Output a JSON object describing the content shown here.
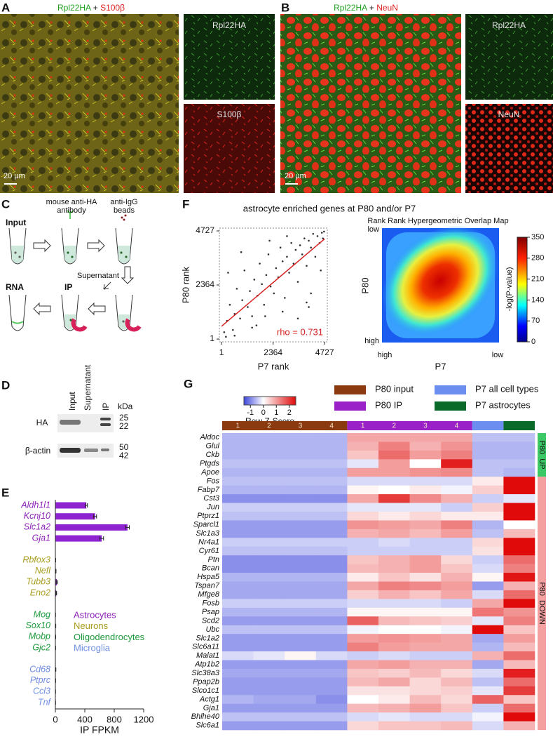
{
  "figure": {
    "A": {
      "letter": "A",
      "title": {
        "green": "Rpl22HA",
        "plus": "+",
        "red": "S100β"
      },
      "scale_bar": "20 µm",
      "insets": [
        "Rpl22HA",
        "S100β"
      ]
    },
    "B": {
      "letter": "B",
      "title": {
        "green": "Rpl22HA",
        "plus": "+",
        "red": "NeuN"
      },
      "scale_bar": "20 µm",
      "insets": [
        "Rpl22HA",
        "NeuN"
      ]
    },
    "C": {
      "letter": "C",
      "input": "Input",
      "antibody": [
        "mouse anti-HA",
        "antibody"
      ],
      "beads": [
        "anti-IgG",
        "beads"
      ],
      "supernatant": "Supernatant",
      "rna": "RNA",
      "ip": "IP"
    },
    "D": {
      "letter": "D",
      "lanes": [
        "Input",
        "Supernatant",
        "IP"
      ],
      "unit": "kDa",
      "blots": [
        {
          "name": "HA",
          "kda": [
            25,
            22
          ]
        },
        {
          "name": "β-actin",
          "kda": [
            50,
            42
          ]
        }
      ]
    }
  },
  "chart_data": [
    {
      "panel": "E",
      "type": "bar",
      "bar_color": "#8e24d0",
      "xlabel": "IP FPKM",
      "xlim": [
        0,
        1200
      ],
      "xticks": [
        0,
        400,
        800,
        1200
      ],
      "groups": [
        {
          "name": "Astrocytes",
          "color": "#8e24b8",
          "categories": [
            "Aldh1l1",
            "Kcnj10",
            "Slc1a2",
            "Gja1"
          ],
          "values": [
            420,
            540,
            980,
            630
          ],
          "errors": [
            15,
            20,
            25,
            25
          ]
        },
        {
          "name": "Neurons",
          "color": "#a89c1c",
          "categories": [
            "Rbfox3",
            "Nefl",
            "Tubb3",
            "Eno2"
          ],
          "values": [
            3,
            6,
            20,
            12
          ],
          "errors": [
            2,
            3,
            8,
            5
          ]
        },
        {
          "name": "Oligodendrocytes",
          "color": "#1e9a3c",
          "categories": [
            "Mog",
            "Sox10",
            "Mobp",
            "Gjc2"
          ],
          "values": [
            2,
            4,
            3,
            3
          ],
          "errors": [
            1,
            2,
            2,
            1
          ]
        },
        {
          "name": "Microglia",
          "color": "#6e8ee0",
          "categories": [
            "Cd68",
            "Ptprc",
            "Ccl3",
            "Tnf"
          ],
          "values": [
            5,
            3,
            2,
            2
          ],
          "errors": [
            2,
            1,
            1,
            1
          ]
        }
      ]
    },
    {
      "panel": "F",
      "type": "scatter",
      "title": "astrocyte enriched genes at P80 and/or P7",
      "xlabel": "P7 rank",
      "ylabel": "P80 rank",
      "xlim": [
        -100,
        4850
      ],
      "ylim": [
        -120,
        4850
      ],
      "xticks": [
        1,
        2364,
        4727
      ],
      "yticks": [
        1,
        2364,
        4727
      ],
      "color": "#333333",
      "x": [
        120,
        250,
        380,
        520,
        600,
        700,
        850,
        950,
        1050,
        1200,
        1300,
        1400,
        1500,
        1650,
        1750,
        1850,
        1950,
        2050,
        2150,
        2250,
        2400,
        2500,
        2600,
        2700,
        2800,
        2900,
        3000,
        3100,
        3200,
        3300,
        3400,
        3500,
        3600,
        3700,
        3800,
        3900,
        4000,
        4100,
        4200,
        4300,
        4400,
        4500,
        4600,
        4650,
        4700,
        300,
        900,
        1600,
        2200,
        2800,
        3500,
        4100,
        600,
        1400,
        2000,
        3000,
        3900,
        4550,
        200,
        4000
      ],
      "y": [
        300,
        800,
        1500,
        400,
        1100,
        2200,
        900,
        1700,
        3000,
        1400,
        2100,
        1000,
        2600,
        1900,
        3300,
        2400,
        1500,
        2800,
        3700,
        2300,
        2000,
        3100,
        2700,
        4000,
        3400,
        1800,
        3600,
        2900,
        4200,
        3300,
        3900,
        2500,
        4100,
        3700,
        4400,
        3200,
        4300,
        4000,
        4600,
        3600,
        4500,
        4200,
        4650,
        4400,
        4700,
        2900,
        3800,
        600,
        4300,
        1200,
        900,
        2000,
        150,
        500,
        1000,
        4500,
        1600,
        3000,
        100,
        1400
      ],
      "fit": {
        "x": [
          1,
          4727
        ],
        "y": [
          560,
          4380
        ],
        "color": "#d62020"
      },
      "annotation": "rho = 0.731"
    },
    {
      "type": "rrho",
      "title": "Rank Rank Hypergeometric Overlap Map",
      "xlabel": "P7",
      "ylabel": "P80",
      "x_ends": [
        "high",
        "low"
      ],
      "y_ends": [
        "low",
        "high"
      ],
      "colorbar": {
        "label": "-log(P-value)",
        "lim": [
          0,
          350
        ],
        "ticks": [
          0,
          70,
          140,
          210,
          280,
          350
        ]
      }
    },
    {
      "panel": "G",
      "type": "heatmap",
      "color_key": {
        "title": "Row Z-Score",
        "lim": [
          -1.5,
          2.5
        ],
        "ticks": [
          -1,
          0,
          1,
          2
        ],
        "low": "#3c46dc",
        "mid": "#ffffff",
        "high": "#e00a0a"
      },
      "column_groups": [
        {
          "name": "P80 input",
          "color": "#8b3a10",
          "columns": [
            "1",
            "2",
            "3",
            "4"
          ]
        },
        {
          "name": "P80 IP",
          "color": "#9a20c8",
          "columns": [
            "1",
            "2",
            "3",
            "4"
          ]
        },
        {
          "name": "P7 all cell types",
          "color": "#6b8ef0",
          "columns": [
            null
          ]
        },
        {
          "name": "P7 astrocytes",
          "color": "#0a6a2a",
          "columns": [
            null
          ]
        }
      ],
      "row_groups": [
        {
          "name": "P80  UP",
          "color": "#3cc864",
          "genes": [
            "Aldoc",
            "Glul",
            "Ckb",
            "Ptgds",
            "Apoe"
          ],
          "values": [
            [
              -0.6,
              -0.6,
              -0.6,
              -0.6,
              0.9,
              0.9,
              0.9,
              0.9,
              -0.5,
              -0.5
            ],
            [
              -0.6,
              -0.6,
              -0.6,
              -0.6,
              0.8,
              1.3,
              0.8,
              1.1,
              -0.6,
              -0.6
            ],
            [
              -0.6,
              -0.6,
              -0.6,
              -0.6,
              0.6,
              1.5,
              1.0,
              1.3,
              -0.6,
              -0.6
            ],
            [
              -0.5,
              -0.5,
              -0.5,
              -0.5,
              -0.2,
              1.0,
              0.0,
              2.3,
              -0.5,
              -0.5
            ],
            [
              -0.6,
              -0.6,
              -0.6,
              -0.6,
              1.0,
              1.0,
              1.1,
              1.2,
              -0.5,
              -0.6
            ]
          ]
        },
        {
          "name": "P80  DOWN",
          "color": "#f4a0a0",
          "genes": [
            "Fos",
            "Fabp7",
            "Cst3",
            "Jun",
            "Ptprz1",
            "Sparcl1",
            "Slc1a3",
            "Nr4a1",
            "Cyr61",
            "Ptn",
            "Bcan",
            "Hspa5",
            "Tspan7",
            "Mfge8",
            "Fosb",
            "Psap",
            "Scd2",
            "Ubc",
            "Slc1a2",
            "Slc6a11",
            "Malat1",
            "Atp1b2",
            "Slc38a3",
            "Ppap2b",
            "Slco1c1",
            "Actg1",
            "Gja1",
            "Bhlhe40",
            "Slc6a1"
          ],
          "values": [
            [
              -0.5,
              -0.5,
              -0.5,
              -0.5,
              -0.3,
              -0.3,
              -0.3,
              -0.3,
              0.2,
              2.8
            ],
            [
              -0.6,
              -0.6,
              -0.6,
              -0.6,
              0.1,
              0.0,
              0.2,
              -0.1,
              0.5,
              2.6
            ],
            [
              -0.9,
              -0.9,
              -0.9,
              -0.9,
              0.9,
              2.0,
              1.2,
              0.8,
              -0.4,
              -0.2
            ],
            [
              -0.4,
              -0.4,
              -0.4,
              -0.4,
              -0.2,
              -0.2,
              -0.2,
              -0.4,
              0.5,
              2.7
            ],
            [
              -0.5,
              -0.5,
              -0.5,
              -0.5,
              0.4,
              0.2,
              0.4,
              0.2,
              0.2,
              2.5
            ],
            [
              -0.8,
              -0.8,
              -0.8,
              -0.8,
              1.1,
              1.0,
              0.9,
              1.3,
              -0.6,
              0.0
            ],
            [
              -0.8,
              -0.8,
              -0.8,
              -0.8,
              0.8,
              0.9,
              0.7,
              1.0,
              -0.5,
              0.7
            ],
            [
              -0.4,
              -0.4,
              -0.4,
              -0.4,
              -0.4,
              -0.3,
              -0.4,
              -0.4,
              0.4,
              2.8
            ],
            [
              -0.5,
              -0.5,
              -0.5,
              -0.5,
              -0.4,
              -0.4,
              -0.4,
              -0.4,
              0.3,
              2.7
            ],
            [
              -0.9,
              -0.9,
              -0.9,
              -0.9,
              0.6,
              0.8,
              1.0,
              0.4,
              -0.4,
              1.5
            ],
            [
              -0.9,
              -0.9,
              -0.9,
              -0.9,
              0.7,
              0.8,
              1.0,
              0.6,
              -0.3,
              1.3
            ],
            [
              -0.6,
              -0.6,
              -0.6,
              -0.6,
              0.2,
              0.6,
              0.3,
              0.8,
              0.1,
              2.4
            ],
            [
              -0.7,
              -0.7,
              -0.7,
              -0.7,
              0.9,
              1.3,
              1.2,
              1.0,
              -0.8,
              0.8
            ],
            [
              -0.7,
              -0.7,
              -0.7,
              -0.7,
              0.5,
              0.8,
              0.6,
              0.9,
              -0.3,
              1.5
            ],
            [
              -0.4,
              -0.4,
              -0.4,
              -0.4,
              -0.3,
              -0.3,
              -0.3,
              -0.4,
              0.9,
              2.8
            ],
            [
              -0.6,
              -0.6,
              -0.6,
              -0.6,
              0.1,
              0.1,
              0.1,
              0.1,
              1.4,
              1.1
            ],
            [
              -0.8,
              -0.8,
              -0.8,
              -0.8,
              1.6,
              0.7,
              0.6,
              0.5,
              -0.2,
              1.3
            ],
            [
              -0.5,
              -0.5,
              -0.5,
              -0.5,
              -0.1,
              0.0,
              0.0,
              -0.1,
              2.5,
              0.6
            ],
            [
              -0.8,
              -0.8,
              -0.8,
              -0.8,
              1.0,
              1.1,
              1.0,
              0.9,
              -0.7,
              1.0
            ],
            [
              -0.8,
              -0.8,
              -0.8,
              -0.8,
              1.3,
              1.0,
              0.9,
              0.9,
              -0.6,
              0.7
            ],
            [
              -0.3,
              -0.2,
              0.1,
              -0.3,
              -0.4,
              -0.3,
              -0.4,
              -0.4,
              0.8,
              1.5
            ],
            [
              -0.8,
              -0.8,
              -0.8,
              -0.8,
              0.9,
              1.0,
              0.8,
              0.8,
              -0.7,
              0.7
            ],
            [
              -0.7,
              -0.7,
              -0.7,
              -0.7,
              0.6,
              0.5,
              0.7,
              0.4,
              -0.3,
              2.3
            ],
            [
              -0.8,
              -0.8,
              -0.8,
              -0.8,
              0.7,
              0.9,
              0.4,
              0.7,
              -0.5,
              1.5
            ],
            [
              -0.8,
              -0.8,
              -0.8,
              -0.8,
              0.3,
              0.3,
              0.4,
              0.5,
              -0.2,
              2.0
            ],
            [
              -0.6,
              -0.7,
              -0.7,
              -0.9,
              0.0,
              0.2,
              0.7,
              0.4,
              1.6,
              0.6
            ],
            [
              -0.8,
              -0.8,
              -0.8,
              -0.8,
              0.7,
              0.8,
              1.0,
              0.6,
              -0.4,
              1.5
            ],
            [
              -0.5,
              -0.5,
              -0.5,
              -0.5,
              -0.3,
              -0.2,
              -0.3,
              -0.3,
              -0.1,
              2.7
            ],
            [
              -0.8,
              -0.8,
              -0.8,
              -0.8,
              0.4,
              0.6,
              0.6,
              0.7,
              -0.3,
              0.8
            ]
          ]
        }
      ]
    }
  ]
}
